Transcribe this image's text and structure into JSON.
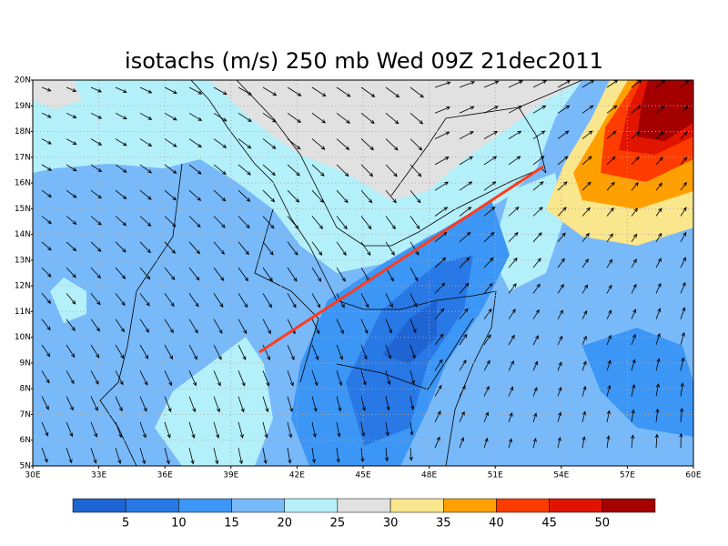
{
  "title": "isotachs (m/s) 250 mb Wed 09Z 21dec2011",
  "map": {
    "lat_labels": [
      "5N",
      "6N",
      "7N",
      "8N",
      "9N",
      "10N",
      "11N",
      "12N",
      "13N",
      "14N",
      "15N",
      "16N",
      "17N",
      "18N",
      "19N",
      "20N"
    ],
    "lon_labels": [
      "30E",
      "33E",
      "36E",
      "39E",
      "42E",
      "45E",
      "48E",
      "51E",
      "54E",
      "57E",
      "60E"
    ]
  },
  "colorbar": {
    "colors": [
      "#1e64d2",
      "#2878e6",
      "#3c96f5",
      "#78b9fa",
      "#b4f0fa",
      "#e1e1e1",
      "#fae68c",
      "#ffa000",
      "#ff3c00",
      "#e11400",
      "#a50000"
    ],
    "labels": [
      5,
      10,
      15,
      20,
      25,
      30,
      35,
      40,
      45,
      50
    ]
  }
}
